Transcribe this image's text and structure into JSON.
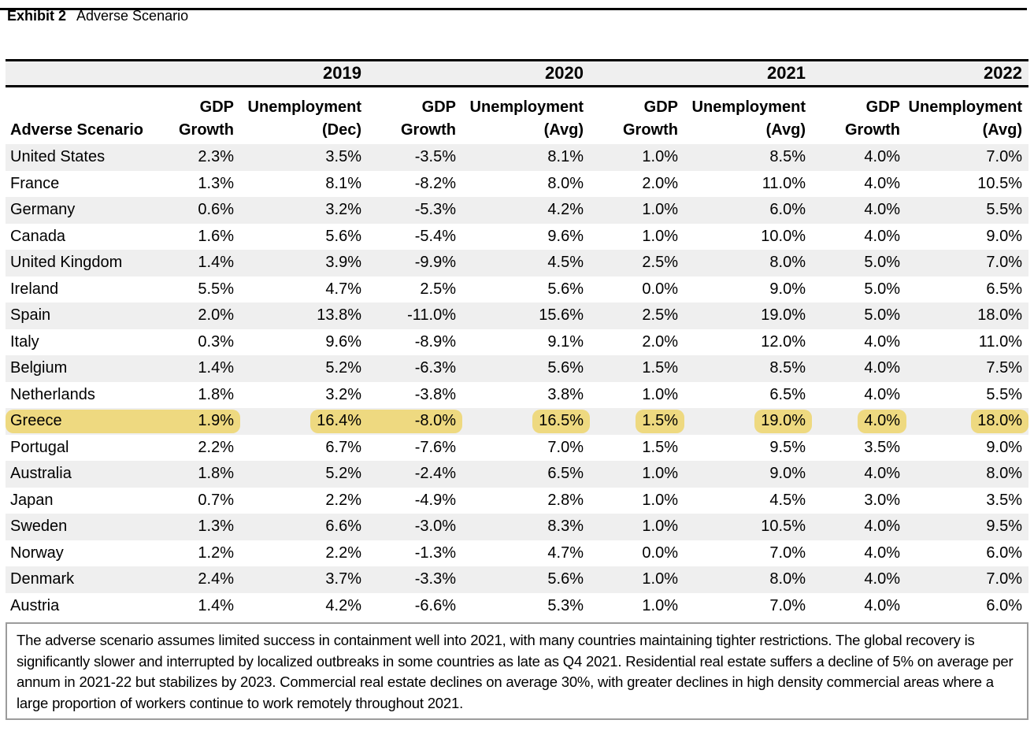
{
  "header": {
    "exhibit_label": "Exhibit 2",
    "exhibit_title": "Adverse Scenario"
  },
  "table": {
    "row_header_label": "Adverse Scenario",
    "row_stripe_color": "#efefef",
    "year_groups": [
      {
        "year": "2019",
        "col1": {
          "line1": "GDP",
          "line2": "Growth"
        },
        "col2": {
          "line1": "Unemployment",
          "line2": "(Dec)"
        }
      },
      {
        "year": "2020",
        "col1": {
          "line1": "GDP",
          "line2": "Growth"
        },
        "col2": {
          "line1": "Unemployment",
          "line2": "(Avg)"
        }
      },
      {
        "year": "2021",
        "col1": {
          "line1": "GDP",
          "line2": "Growth"
        },
        "col2": {
          "line1": "Unemployment",
          "line2": "(Avg)"
        }
      },
      {
        "year": "2022",
        "col1": {
          "line1": "GDP",
          "line2": "Growth"
        },
        "col2": {
          "line1": "Unemployment",
          "line2": "(Avg)"
        }
      }
    ],
    "rows": [
      {
        "country": "United States",
        "values": [
          "2.3%",
          "3.5%",
          "-3.5%",
          "8.1%",
          "1.0%",
          "8.5%",
          "4.0%",
          "7.0%"
        ]
      },
      {
        "country": "France",
        "values": [
          "1.3%",
          "8.1%",
          "-8.2%",
          "8.0%",
          "2.0%",
          "11.0%",
          "4.0%",
          "10.5%"
        ]
      },
      {
        "country": "Germany",
        "values": [
          "0.6%",
          "3.2%",
          "-5.3%",
          "4.2%",
          "1.0%",
          "6.0%",
          "4.0%",
          "5.5%"
        ]
      },
      {
        "country": "Canada",
        "values": [
          "1.6%",
          "5.6%",
          "-5.4%",
          "9.6%",
          "1.0%",
          "10.0%",
          "4.0%",
          "9.0%"
        ]
      },
      {
        "country": "United Kingdom",
        "values": [
          "1.4%",
          "3.9%",
          "-9.9%",
          "4.5%",
          "2.5%",
          "8.0%",
          "5.0%",
          "7.0%"
        ]
      },
      {
        "country": "Ireland",
        "values": [
          "5.5%",
          "4.7%",
          "2.5%",
          "5.6%",
          "0.0%",
          "9.0%",
          "5.0%",
          "6.5%"
        ]
      },
      {
        "country": "Spain",
        "values": [
          "2.0%",
          "13.8%",
          "-11.0%",
          "15.6%",
          "2.5%",
          "19.0%",
          "5.0%",
          "18.0%"
        ]
      },
      {
        "country": "Italy",
        "values": [
          "0.3%",
          "9.6%",
          "-8.9%",
          "9.1%",
          "2.0%",
          "12.0%",
          "4.0%",
          "11.0%"
        ]
      },
      {
        "country": "Belgium",
        "values": [
          "1.4%",
          "5.2%",
          "-6.3%",
          "5.6%",
          "1.5%",
          "8.5%",
          "4.0%",
          "7.5%"
        ]
      },
      {
        "country": "Netherlands",
        "values": [
          "1.8%",
          "3.2%",
          "-3.8%",
          "3.8%",
          "1.0%",
          "6.5%",
          "4.0%",
          "5.5%"
        ]
      },
      {
        "country": "Greece",
        "values": [
          "1.9%",
          "16.4%",
          "-8.0%",
          "16.5%",
          "1.5%",
          "19.0%",
          "4.0%",
          "18.0%"
        ]
      },
      {
        "country": "Portugal",
        "values": [
          "2.2%",
          "6.7%",
          "-7.6%",
          "7.0%",
          "1.5%",
          "9.5%",
          "3.5%",
          "9.0%"
        ]
      },
      {
        "country": "Australia",
        "values": [
          "1.8%",
          "5.2%",
          "-2.4%",
          "6.5%",
          "1.0%",
          "9.0%",
          "4.0%",
          "8.0%"
        ]
      },
      {
        "country": "Japan",
        "values": [
          "0.7%",
          "2.2%",
          "-4.9%",
          "2.8%",
          "1.0%",
          "4.5%",
          "3.0%",
          "3.5%"
        ]
      },
      {
        "country": "Sweden",
        "values": [
          "1.3%",
          "6.6%",
          "-3.0%",
          "8.3%",
          "1.0%",
          "10.5%",
          "4.0%",
          "9.5%"
        ]
      },
      {
        "country": "Norway",
        "values": [
          "1.2%",
          "2.2%",
          "-1.3%",
          "4.7%",
          "0.0%",
          "7.0%",
          "4.0%",
          "6.0%"
        ]
      },
      {
        "country": "Denmark",
        "values": [
          "2.4%",
          "3.7%",
          "-3.3%",
          "5.6%",
          "1.0%",
          "8.0%",
          "4.0%",
          "7.0%"
        ]
      },
      {
        "country": "Austria",
        "values": [
          "1.4%",
          "4.2%",
          "-6.6%",
          "5.3%",
          "1.0%",
          "7.0%",
          "4.0%",
          "6.0%"
        ]
      }
    ],
    "highlight": {
      "row_index": 10,
      "color": "#eed980",
      "segments": [
        [
          0,
          1
        ],
        [
          2,
          3
        ],
        [
          4,
          4
        ],
        [
          5,
          5
        ],
        [
          6,
          6
        ],
        [
          7,
          7
        ],
        [
          8,
          8
        ]
      ]
    }
  },
  "footnote": "The adverse scenario assumes limited success in containment well into 2021, with many countries maintaining tighter restrictions. The global recovery is significantly slower and interrupted by localized outbreaks in some countries as late as Q4 2021. Residential real estate suffers a decline of 5% on average per annum in 2021-22 but stabilizes by 2023. Commercial real estate declines on average 30%, with greater declines in high density commercial areas where a large proportion of workers continue to work remotely throughout 2021."
}
